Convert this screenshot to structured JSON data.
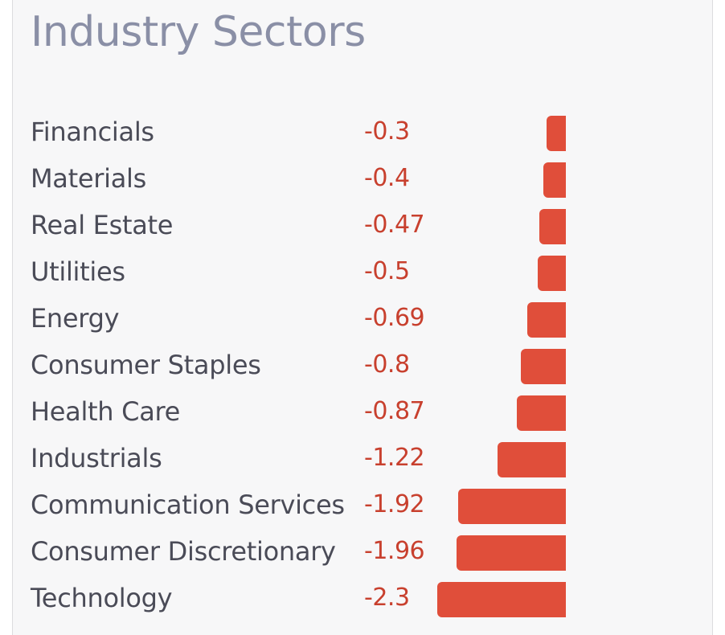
{
  "title": "Industry Sectors",
  "colors": {
    "bar": "#e04e3a",
    "value_text": "#c8402e",
    "title_text": "#8a8fa6",
    "label_text": "#4a4b57"
  },
  "chart_data": {
    "type": "bar",
    "orientation": "horizontal",
    "title": "Industry Sectors",
    "categories": [
      "Financials",
      "Materials",
      "Real Estate",
      "Utilities",
      "Energy",
      "Consumer Staples",
      "Health Care",
      "Industrials",
      "Communication Services",
      "Consumer Discretionary",
      "Technology"
    ],
    "values": [
      -0.3,
      -0.4,
      -0.47,
      -0.5,
      -0.69,
      -0.8,
      -0.87,
      -1.22,
      -1.92,
      -1.96,
      -2.3
    ],
    "value_labels": [
      "-0.3",
      "-0.4",
      "-0.47",
      "-0.5",
      "-0.69",
      "-0.8",
      "-0.87",
      "-1.22",
      "-1.92",
      "-1.96",
      "-2.3"
    ],
    "xlim": [
      -2.3,
      0
    ],
    "grid": false,
    "legend": "none"
  }
}
